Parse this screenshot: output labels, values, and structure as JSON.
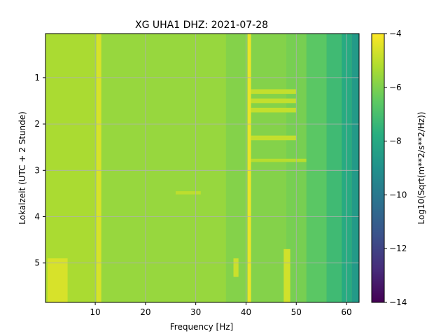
{
  "chart_data": {
    "type": "heatmap",
    "title": "XG UHA1  DHZ: 2021-07-28",
    "xlabel": "Frequency [Hz]",
    "ylabel": "Lokalzeit (UTC + 2 Stunde)",
    "colorbar_label": "Log10(Sqrt(m**2/s**2/Hz))",
    "x_ticks": [
      10,
      20,
      30,
      40,
      50,
      60
    ],
    "y_ticks": [
      1,
      2,
      3,
      4,
      5
    ],
    "colorbar_ticks": [
      -4,
      -6,
      -8,
      -10,
      -12,
      -14
    ],
    "xlim": [
      0.1,
      62.5
    ],
    "ylim": [
      5.85,
      0.05
    ],
    "clim": [
      -14,
      -4
    ],
    "colormap": "viridis",
    "grid": true,
    "background_level": -5.7,
    "columns": [
      {
        "x": [
          0.1,
          10
        ],
        "y": [
          0.05,
          5.85
        ],
        "value": -5.3
      },
      {
        "x": [
          10,
          36
        ],
        "y": [
          0.05,
          5.85
        ],
        "value": -5.6
      },
      {
        "x": [
          36,
          48
        ],
        "y": [
          0.05,
          5.85
        ],
        "value": -5.9
      },
      {
        "x": [
          48,
          52
        ],
        "y": [
          0.05,
          5.85
        ],
        "value": -6.1
      },
      {
        "x": [
          52,
          56
        ],
        "y": [
          0.05,
          5.85
        ],
        "value": -6.6
      },
      {
        "x": [
          56,
          59
        ],
        "y": [
          0.05,
          5.85
        ],
        "value": -7.2
      },
      {
        "x": [
          59,
          61
        ],
        "y": [
          0.05,
          5.85
        ],
        "value": -7.9
      },
      {
        "x": [
          61,
          62.5
        ],
        "y": [
          0.05,
          5.85
        ],
        "value": -8.6
      }
    ],
    "features": [
      {
        "x": [
          10.2,
          11.2
        ],
        "y": [
          0.05,
          5.85
        ],
        "value": -4.6
      },
      {
        "x": [
          40.3,
          41.0
        ],
        "y": [
          0.05,
          5.85
        ],
        "value": -4.3
      },
      {
        "x": [
          0.5,
          4.5
        ],
        "y": [
          4.9,
          5.85
        ],
        "value": -4.6
      },
      {
        "x": [
          41,
          50
        ],
        "y": [
          1.25,
          1.35
        ],
        "value": -4.9
      },
      {
        "x": [
          41,
          50
        ],
        "y": [
          1.45,
          1.55
        ],
        "value": -4.9
      },
      {
        "x": [
          41,
          50
        ],
        "y": [
          1.65,
          1.75
        ],
        "value": -4.9
      },
      {
        "x": [
          41,
          50
        ],
        "y": [
          2.25,
          2.35
        ],
        "value": -4.9
      },
      {
        "x": [
          41,
          52
        ],
        "y": [
          2.75,
          2.82
        ],
        "value": -5.1
      },
      {
        "x": [
          37.5,
          38.5
        ],
        "y": [
          4.9,
          5.3
        ],
        "value": -4.8
      },
      {
        "x": [
          47.5,
          48.8
        ],
        "y": [
          4.7,
          5.85
        ],
        "value": -4.7
      },
      {
        "x": [
          26,
          31
        ],
        "y": [
          3.45,
          3.52
        ],
        "value": -5.0
      }
    ]
  }
}
